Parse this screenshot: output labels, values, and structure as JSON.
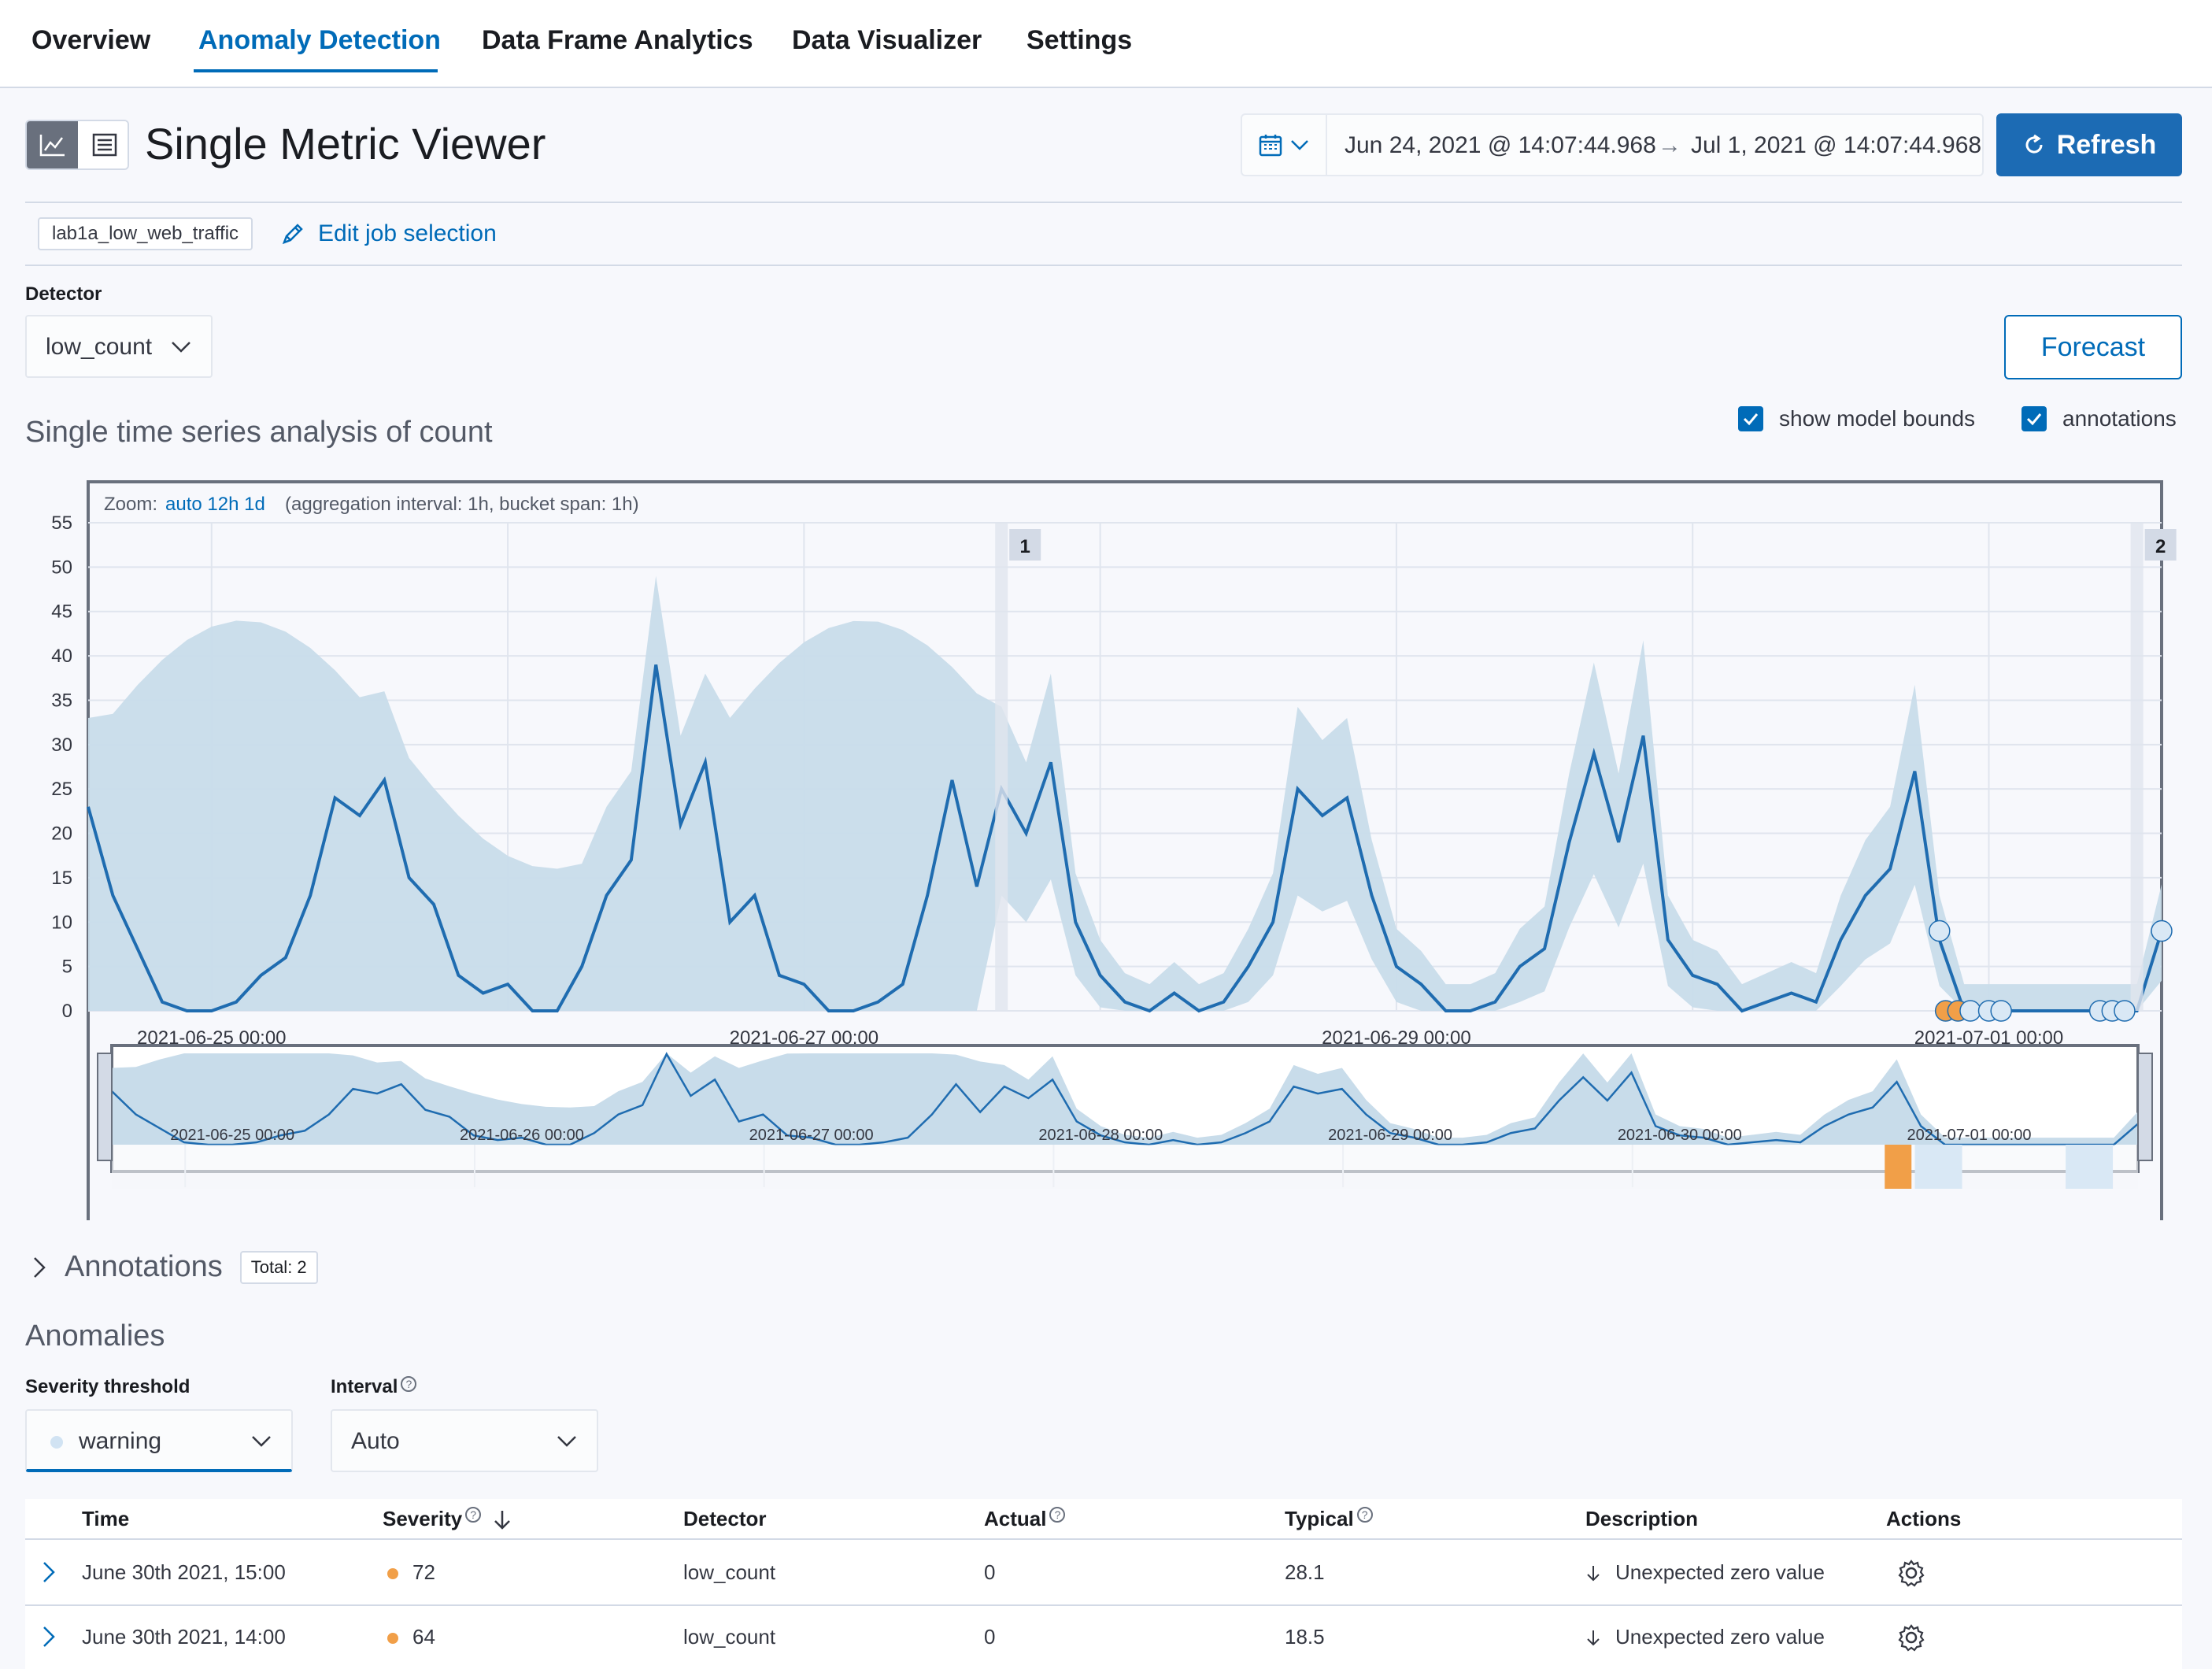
{
  "tabs": [
    {
      "label": "Overview"
    },
    {
      "label": "Anomaly Detection"
    },
    {
      "label": "Data Frame Analytics"
    },
    {
      "label": "Data Visualizer"
    },
    {
      "label": "Settings"
    }
  ],
  "header": {
    "title": "Single Metric Viewer",
    "date_start": "Jun 24, 2021 @ 14:07:44.968",
    "date_arrow": "→",
    "date_end": "Jul 1, 2021 @ 14:07:44.968",
    "refresh_label": "Refresh"
  },
  "job": {
    "id": "lab1a_low_web_traffic",
    "edit_label": "Edit job selection"
  },
  "detector": {
    "label": "Detector",
    "value": "low_count"
  },
  "forecast_label": "Forecast",
  "chart": {
    "title": "Single time series analysis of count",
    "show_model_bounds": "show model bounds",
    "annotations_toggle": "annotations",
    "zoom_prefix": "Zoom:",
    "zoom_options": "auto 12h 1d",
    "aggregation": "(aggregation interval: 1h, bucket span: 1h)",
    "y_ticks": [
      "55",
      "50",
      "45",
      "40",
      "35",
      "30",
      "25",
      "20",
      "15",
      "10",
      "5",
      "0"
    ],
    "x_ticks": [
      "2021-06-25 00:00",
      "2021-06-27 00:00",
      "2021-06-29 00:00",
      "2021-07-01 00:00"
    ],
    "annotation_markers": [
      "1",
      "2"
    ],
    "context_ticks": [
      "2021-06-25 00:00",
      "2021-06-26 00:00",
      "2021-06-27 00:00",
      "2021-06-28 00:00",
      "2021-06-29 00:00",
      "2021-06-30 00:00",
      "2021-07-01 00:00"
    ],
    "colors": {
      "line": "#1f6cb0",
      "bounds": "#c8dcea",
      "anomaly_warning": "#f19f48",
      "marker": "#d9e8f5"
    }
  },
  "chart_data": {
    "type": "line",
    "ylim": [
      0,
      55
    ],
    "x_range": [
      "2021-06-24 14:00",
      "2021-07-01 14:00"
    ],
    "interval": "1h",
    "series": [
      {
        "name": "actual",
        "hours_offset": [
          0,
          2,
          4,
          6,
          8,
          10,
          12,
          14,
          16,
          18,
          20,
          22,
          24,
          26,
          28,
          30,
          32,
          34,
          36,
          38,
          40,
          42,
          44,
          46,
          48,
          50,
          52,
          54,
          56,
          58,
          60,
          62,
          64,
          66,
          68,
          70,
          72,
          74,
          76,
          78,
          80,
          82,
          84,
          86,
          88,
          90,
          92,
          94,
          96,
          98,
          100,
          102,
          104,
          106,
          108,
          110,
          112,
          114,
          116,
          118,
          120,
          122,
          124,
          126,
          128,
          130,
          132,
          134,
          136,
          138,
          140,
          142,
          144,
          146,
          148,
          150,
          152,
          154,
          156,
          158,
          160,
          162,
          164,
          166,
          168
        ],
        "values": [
          23,
          13,
          7,
          1,
          0,
          0,
          1,
          4,
          6,
          13,
          24,
          22,
          26,
          15,
          12,
          4,
          2,
          3,
          0,
          0,
          5,
          13,
          17,
          39,
          21,
          28,
          10,
          13,
          4,
          3,
          0,
          0,
          1,
          3,
          13,
          26,
          14,
          25,
          20,
          28,
          10,
          4,
          1,
          0,
          2,
          0,
          1,
          5,
          10,
          25,
          22,
          24,
          13,
          5,
          3,
          0,
          0,
          1,
          5,
          7,
          19,
          29,
          19,
          31,
          8,
          4,
          3,
          0,
          1,
          2,
          1,
          8,
          13,
          16,
          27,
          8,
          0,
          0,
          0,
          0,
          0,
          0,
          0,
          0,
          9
        ]
      }
    ],
    "model_bounds": {
      "upper_peak": 46,
      "lower_min": 0
    }
  },
  "annotations_section": {
    "title": "Annotations",
    "total": "Total: 2"
  },
  "anomalies": {
    "title": "Anomalies",
    "severity_label": "Severity threshold",
    "severity_value": "warning",
    "interval_label": "Interval",
    "interval_value": "Auto",
    "columns": [
      "Time",
      "Severity",
      "Detector",
      "Actual",
      "Typical",
      "Description",
      "Actions"
    ],
    "rows": [
      {
        "time": "June 30th 2021, 15:00",
        "severity": "72",
        "detector": "low_count",
        "actual": "0",
        "typical": "28.1",
        "description": "Unexpected zero value"
      },
      {
        "time": "June 30th 2021, 14:00",
        "severity": "64",
        "detector": "low_count",
        "actual": "0",
        "typical": "18.5",
        "description": "Unexpected zero value"
      }
    ]
  }
}
